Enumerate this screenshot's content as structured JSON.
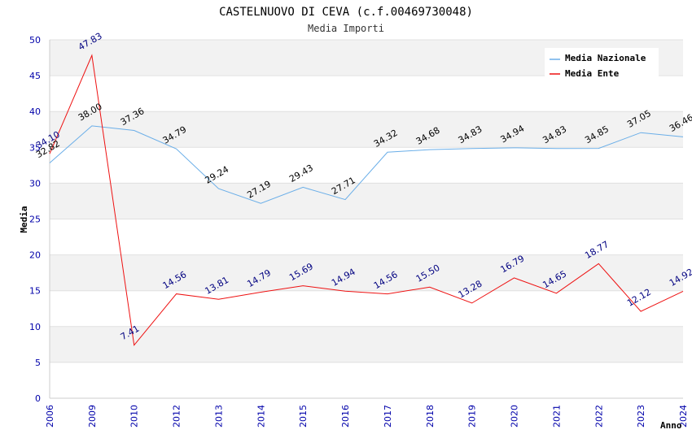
{
  "title": "CASTELNUOVO DI CEVA (c.f.00469730048)",
  "subtitle": "Media Importi",
  "colors": {
    "background": "#ffffff",
    "band": "#f2f2f2",
    "grid": "#e0e0e0",
    "tick_text": "#0000aa",
    "nazionale": "#6aaee8",
    "ente": "#ee1111",
    "nazionale_label": "#000000",
    "ente_label": "#000080"
  },
  "chart_data": {
    "type": "line",
    "title": "CASTELNUOVO DI CEVA (c.f.00469730048)",
    "subtitle": "Media Importi",
    "xlabel": "Anno",
    "ylabel": "Media",
    "ylim": [
      0,
      50
    ],
    "yticks": [
      0,
      5,
      10,
      15,
      20,
      25,
      30,
      35,
      40,
      45,
      50
    ],
    "grid": true,
    "legend_position": "top-right",
    "categories": [
      "2006",
      "2009",
      "2010",
      "2012",
      "2013",
      "2014",
      "2015",
      "2016",
      "2017",
      "2018",
      "2019",
      "2020",
      "2021",
      "2022",
      "2023",
      "2024"
    ],
    "series": [
      {
        "name": "Media Nazionale",
        "color": "#6aaee8",
        "values": [
          32.82,
          38.0,
          37.36,
          34.79,
          29.24,
          27.19,
          29.43,
          27.71,
          34.32,
          34.68,
          34.83,
          34.94,
          34.83,
          34.85,
          37.05,
          36.46
        ],
        "labels": [
          "32.82",
          "38.00",
          "37.36",
          "34.79",
          "29.24",
          "27.19",
          "29.43",
          "27.71",
          "34.32",
          "34.68",
          "34.83",
          "34.94",
          "34.83",
          "34.85",
          "37.05",
          "36.46"
        ]
      },
      {
        "name": "Media Ente",
        "color": "#ee1111",
        "values": [
          34.1,
          47.83,
          7.41,
          14.56,
          13.81,
          14.79,
          15.69,
          14.94,
          14.56,
          15.5,
          13.28,
          16.79,
          14.65,
          18.77,
          12.12,
          14.92
        ],
        "labels": [
          "34.10",
          "47.83",
          "7.41",
          "14.56",
          "13.81",
          "14.79",
          "15.69",
          "14.94",
          "14.56",
          "15.50",
          "13.28",
          "16.79",
          "14.65",
          "18.77",
          "12.12",
          "14.92"
        ]
      }
    ]
  }
}
